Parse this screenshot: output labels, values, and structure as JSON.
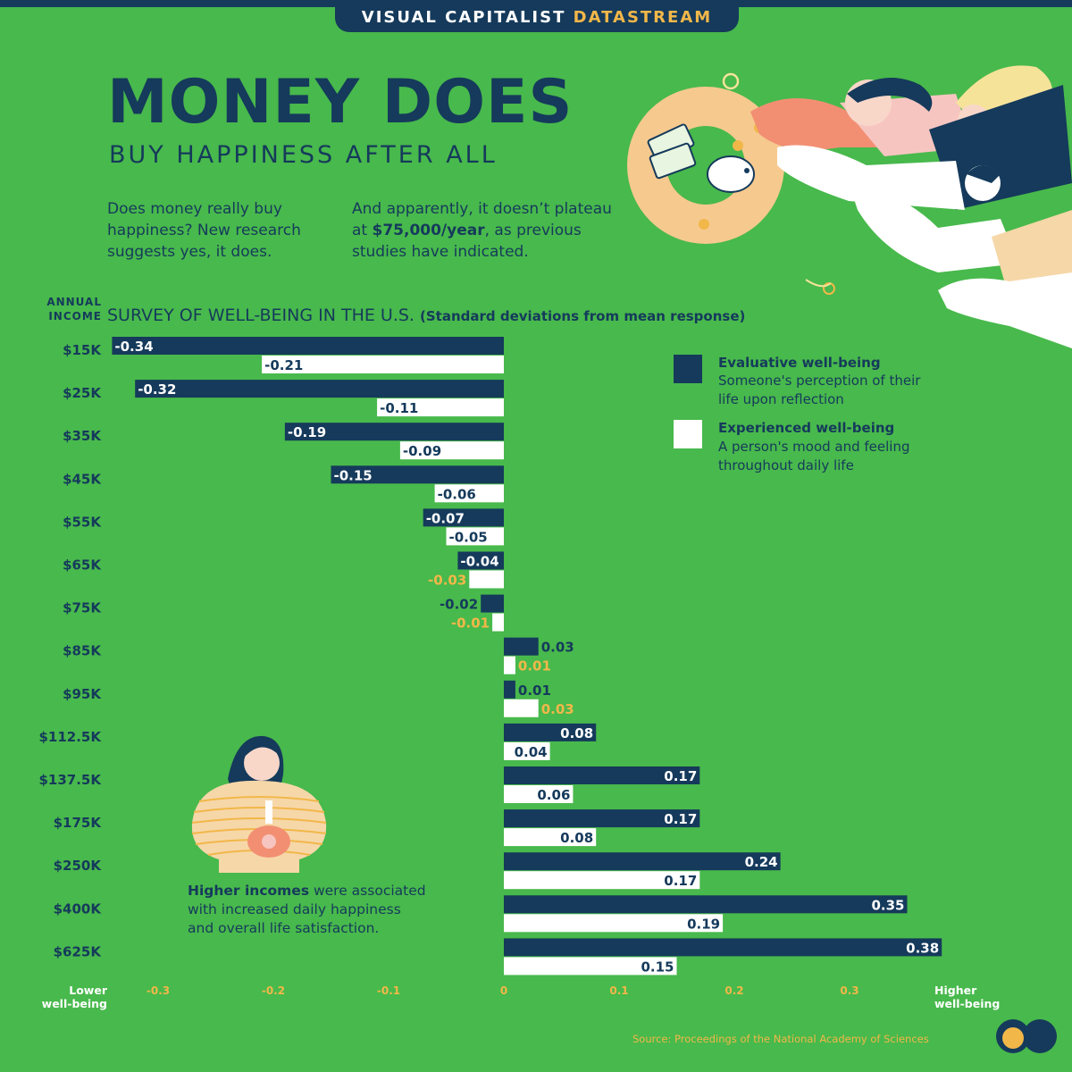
{
  "header": {
    "brand": "VISUAL CAPITALIST",
    "brand_accent": "DATASTREAM"
  },
  "title": "MONEY DOES",
  "subtitle": "BUY HAPPINESS AFTER ALL",
  "intro_left": "Does money really buy happiness? New research suggests yes, it does.",
  "intro_right_before": "And apparently, it doesn’t plateau at ",
  "intro_right_bold": "$75,000/year",
  "intro_right_after": ", as previous studies have indicated.",
  "annual_income_label": "ANNUAL INCOME",
  "survey_title": "SURVEY OF WELL-BEING IN THE U.S.",
  "survey_unit": "(Standard deviations from mean response)",
  "legend": [
    {
      "title": "Evaluative well-being",
      "desc": "Someone's perception of their life upon reflection",
      "color": "#153a5b"
    },
    {
      "title": "Experienced well-being",
      "desc": "A person's mood and feeling throughout daily life",
      "color": "#ffffff"
    }
  ],
  "note_bold": "Higher incomes",
  "note_rest": " were associated with increased daily happiness and overall life satisfaction.",
  "source": "Source: Proceedings of the National Academy of Sciences",
  "colors": {
    "background": "#48b94c",
    "navy": "#153a5b",
    "accent": "#f2b749",
    "white": "#ffffff"
  },
  "chart_data": {
    "type": "bar",
    "orientation": "horizontal",
    "categories": [
      "$15K",
      "$25K",
      "$35K",
      "$45K",
      "$55K",
      "$65K",
      "$75K",
      "$85K",
      "$95K",
      "$112.5K",
      "$137.5K",
      "$175K",
      "$250K",
      "$400K",
      "$625K"
    ],
    "series": [
      {
        "name": "Evaluative well-being",
        "values": [
          -0.34,
          -0.32,
          -0.19,
          -0.15,
          -0.07,
          -0.04,
          -0.02,
          0.03,
          0.01,
          0.08,
          0.17,
          0.17,
          0.24,
          0.35,
          0.38
        ],
        "color": "#153a5b"
      },
      {
        "name": "Experienced well-being",
        "values": [
          -0.21,
          -0.11,
          -0.09,
          -0.06,
          -0.05,
          -0.03,
          -0.01,
          0.01,
          0.03,
          0.04,
          0.06,
          0.08,
          0.17,
          0.19,
          0.15
        ],
        "color": "#ffffff"
      }
    ],
    "xlim": [
      -0.35,
      0.4
    ],
    "xticks": [
      -0.3,
      -0.2,
      -0.1,
      0,
      0.1,
      0.2,
      0.3
    ],
    "xlabel_left": "Lower well-being",
    "xlabel_right": "Higher well-being",
    "legend_position": "right"
  }
}
